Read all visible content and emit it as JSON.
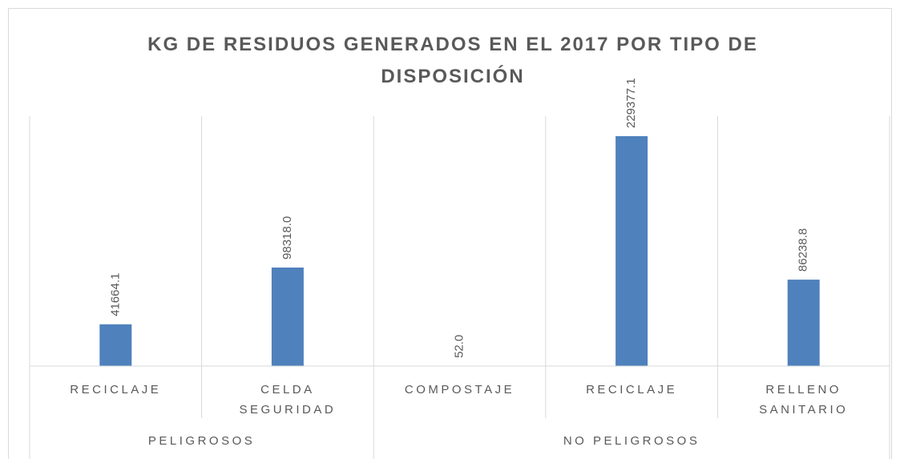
{
  "chart_data": {
    "type": "bar",
    "title": "KG DE RESIDUOS GENERADOS EN EL 2017 POR TIPO DE DISPOSICIÓN",
    "groups": [
      {
        "name": "PELIGROSOS",
        "categories": [
          "RECICLAJE",
          "CELDA SEGURIDAD"
        ]
      },
      {
        "name": "NO PELIGROSOS",
        "categories": [
          "COMPOSTAJE",
          "RECICLAJE",
          "RELLENO SANITARIO"
        ]
      }
    ],
    "values": [
      41664.1,
      98318.0,
      52.0,
      229377.1,
      86238.8
    ],
    "value_labels": [
      "41664.1",
      "98318.0",
      "52.0",
      "229377.1",
      "86238.8"
    ],
    "color": "#4f81bd"
  }
}
